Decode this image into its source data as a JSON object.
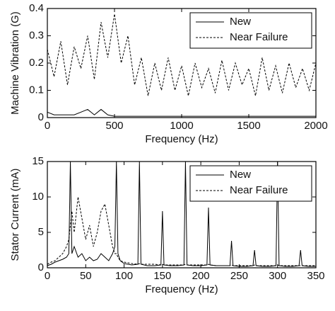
{
  "chart_data": [
    {
      "type": "line",
      "ylabel": "Machine Vibration (G)",
      "xlabel": "Frequency (Hz)",
      "xlim": [
        0,
        2000
      ],
      "xticks": [
        0,
        500,
        1000,
        1500,
        2000
      ],
      "ylim": [
        0,
        0.4
      ],
      "yticks": [
        0,
        0.1,
        0.2,
        0.3,
        0.4
      ],
      "legend": "upper right",
      "x": [
        0,
        50,
        100,
        150,
        200,
        250,
        300,
        350,
        400,
        450,
        500,
        550,
        600,
        650,
        700,
        750,
        800,
        850,
        900,
        950,
        1000,
        1050,
        1100,
        1150,
        1200,
        1250,
        1300,
        1350,
        1400,
        1450,
        1500,
        1550,
        1600,
        1650,
        1700,
        1750,
        1800,
        1850,
        1900,
        1950,
        2000
      ],
      "series": [
        {
          "name": "New",
          "color": "#000000",
          "style": "solid",
          "values": [
            0.02,
            0.01,
            0.01,
            0.01,
            0.01,
            0.02,
            0.03,
            0.01,
            0.03,
            0.01,
            0.005,
            0.005,
            0.005,
            0.005,
            0.005,
            0.005,
            0.005,
            0.005,
            0.005,
            0.005,
            0.005,
            0.005,
            0.005,
            0.005,
            0.005,
            0.005,
            0.005,
            0.005,
            0.005,
            0.005,
            0.005,
            0.005,
            0.005,
            0.005,
            0.005,
            0.005,
            0.005,
            0.005,
            0.005,
            0.005,
            0.005
          ]
        },
        {
          "name": "Near Failure",
          "color": "#000000",
          "style": "dashed",
          "values": [
            0.25,
            0.15,
            0.28,
            0.12,
            0.26,
            0.18,
            0.3,
            0.14,
            0.35,
            0.22,
            0.38,
            0.2,
            0.3,
            0.12,
            0.22,
            0.08,
            0.2,
            0.1,
            0.22,
            0.1,
            0.19,
            0.08,
            0.2,
            0.11,
            0.18,
            0.09,
            0.21,
            0.1,
            0.2,
            0.12,
            0.18,
            0.08,
            0.22,
            0.1,
            0.19,
            0.09,
            0.2,
            0.11,
            0.18,
            0.1,
            0.2
          ]
        }
      ]
    },
    {
      "type": "line",
      "ylabel": "Stator Current (mA)",
      "xlabel": "Frequency (Hz)",
      "xlim": [
        0,
        350
      ],
      "xticks": [
        0,
        50,
        100,
        150,
        200,
        250,
        300,
        350
      ],
      "ylim": [
        0,
        15
      ],
      "yticks": [
        0,
        5,
        10,
        15
      ],
      "legend": "upper right",
      "x": [
        0,
        5,
        10,
        15,
        20,
        25,
        28,
        30,
        32,
        35,
        40,
        45,
        50,
        55,
        60,
        65,
        70,
        75,
        80,
        85,
        88,
        90,
        92,
        95,
        100,
        110,
        118,
        120,
        122,
        130,
        140,
        148,
        150,
        152,
        160,
        170,
        178,
        180,
        182,
        190,
        200,
        208,
        210,
        212,
        220,
        230,
        238,
        240,
        242,
        250,
        260,
        268,
        270,
        272,
        280,
        290,
        298,
        300,
        302,
        310,
        320,
        328,
        330,
        332,
        340,
        350
      ],
      "series": [
        {
          "name": "New",
          "color": "#000000",
          "style": "solid",
          "values": [
            0.3,
            0.5,
            0.8,
            1,
            1.2,
            1.5,
            2,
            15,
            2,
            3,
            1.5,
            2,
            1,
            1.5,
            1,
            1.2,
            2,
            1.5,
            1,
            2,
            3,
            15,
            2,
            1,
            0.6,
            0.4,
            0.5,
            15,
            0.5,
            0.3,
            0.3,
            0.4,
            8,
            0.4,
            0.3,
            0.3,
            0.4,
            15,
            0.4,
            0.3,
            0.3,
            0.4,
            8.5,
            0.4,
            0.3,
            0.3,
            0.3,
            3.8,
            0.3,
            0.2,
            0.2,
            0.3,
            2.5,
            0.3,
            0.2,
            0.2,
            0.3,
            15,
            0.3,
            0.2,
            0.2,
            0.3,
            2.5,
            0.3,
            0.2,
            0.2
          ]
        },
        {
          "name": "Near Failure",
          "color": "#000000",
          "style": "dashed",
          "values": [
            0.5,
            0.8,
            1,
            1.5,
            2,
            3,
            4,
            6,
            8,
            5,
            10,
            7,
            4,
            6,
            3,
            5,
            8,
            9,
            6,
            3,
            2,
            2,
            1.5,
            1,
            0.8,
            0.6,
            0.5,
            0.6,
            0.5,
            0.5,
            0.5,
            0.4,
            0.5,
            0.4,
            0.4,
            0.4,
            0.4,
            0.5,
            0.4,
            0.4,
            0.4,
            0.4,
            0.5,
            0.4,
            0.3,
            0.3,
            0.3,
            0.4,
            0.3,
            0.3,
            0.3,
            0.3,
            0.4,
            0.3,
            0.3,
            0.3,
            0.3,
            0.4,
            0.3,
            0.3,
            0.3,
            0.3,
            0.3,
            0.3,
            0.3,
            0.3
          ]
        }
      ]
    }
  ]
}
